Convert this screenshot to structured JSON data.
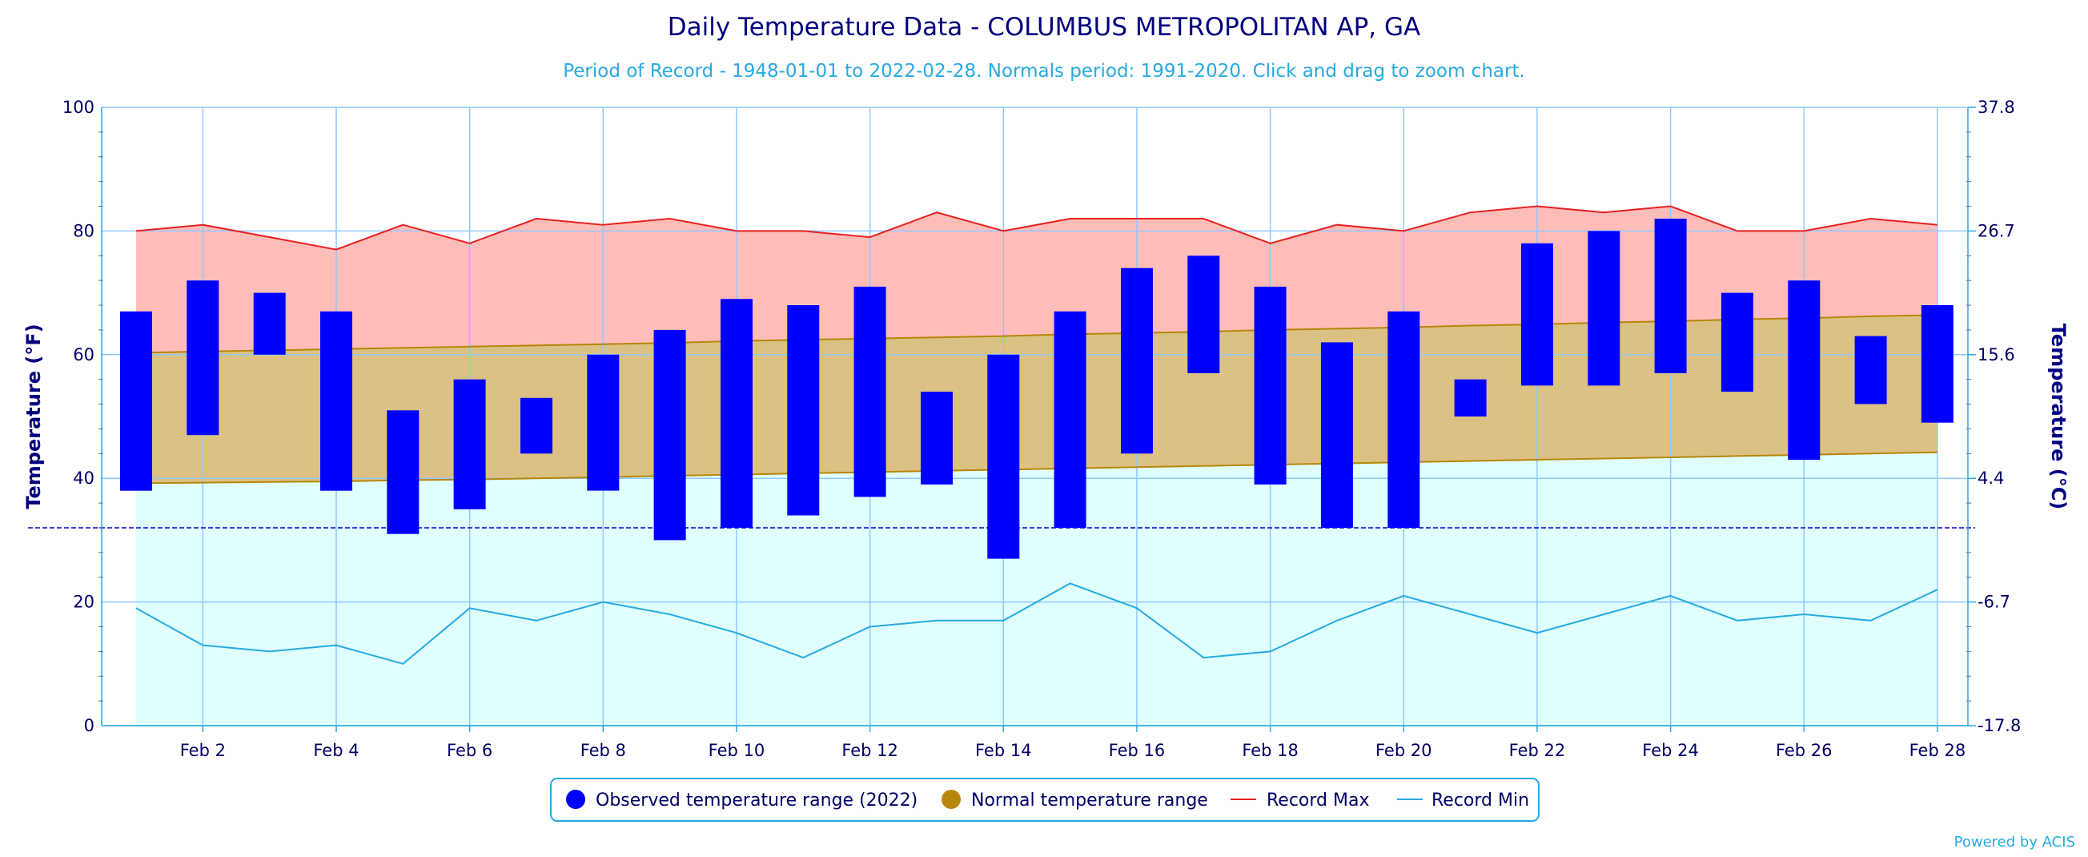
{
  "chart_data": {
    "type": "bar",
    "title": "Daily Temperature Data - COLUMBUS METROPOLITAN AP, GA",
    "subtitle": "Period of Record - 1948-01-01 to 2022-02-28. Normals period: 1991-2020. Click and drag to zoom chart.",
    "ylabel_left": "Temperature (°F)",
    "ylabel_right": "Temperature (°C)",
    "ylim": [
      0,
      100
    ],
    "y_ticks_left": [
      "0",
      "20",
      "40",
      "60",
      "80",
      "100"
    ],
    "y_ticks_right": [
      "-17.8",
      "-6.7",
      "4.4",
      "15.6",
      "26.7",
      "37.8"
    ],
    "x_tick_labels": [
      "Feb 2",
      "Feb 4",
      "Feb 6",
      "Feb 8",
      "Feb 10",
      "Feb 12",
      "Feb 14",
      "Feb 16",
      "Feb 18",
      "Feb 20",
      "Feb 22",
      "Feb 24",
      "Feb 26",
      "Feb 28"
    ],
    "days": [
      1,
      2,
      3,
      4,
      5,
      6,
      7,
      8,
      9,
      10,
      11,
      12,
      13,
      14,
      15,
      16,
      17,
      18,
      19,
      20,
      21,
      22,
      23,
      24,
      25,
      26,
      27,
      28
    ],
    "freezing_line": 32,
    "observed": {
      "name": "Observed temperature range (2022)",
      "color": "#0000ff",
      "low": [
        38,
        47,
        60,
        38,
        31,
        35,
        44,
        38,
        30,
        32,
        34,
        37,
        39,
        27,
        32,
        44,
        57,
        39,
        32,
        32,
        50,
        55,
        55,
        57,
        54,
        43,
        52,
        49
      ],
      "high": [
        67,
        72,
        70,
        67,
        51,
        56,
        53,
        60,
        64,
        69,
        68,
        71,
        54,
        60,
        67,
        74,
        76,
        71,
        62,
        67,
        56,
        78,
        80,
        82,
        70,
        72,
        63,
        68
      ]
    },
    "normal": {
      "name": "Normal temperature range",
      "color": "#b8860b",
      "fill": "#dbc183",
      "low": [
        39.2,
        39.3,
        39.4,
        39.5,
        39.7,
        39.8,
        40.0,
        40.2,
        40.4,
        40.6,
        40.8,
        41.0,
        41.2,
        41.4,
        41.6,
        41.8,
        42.0,
        42.2,
        42.4,
        42.6,
        42.8,
        43.0,
        43.2,
        43.4,
        43.6,
        43.8,
        44.0,
        44.2
      ],
      "high": [
        60.3,
        60.5,
        60.7,
        60.9,
        61.1,
        61.3,
        61.5,
        61.7,
        61.9,
        62.2,
        62.4,
        62.6,
        62.8,
        63.0,
        63.3,
        63.5,
        63.7,
        64.0,
        64.2,
        64.4,
        64.7,
        64.9,
        65.2,
        65.4,
        65.7,
        65.9,
        66.2,
        66.4
      ]
    },
    "record_max": {
      "name": "Record Max",
      "color": "#e8201e",
      "fill": "#ffbdb9",
      "values": [
        80,
        81,
        79,
        77,
        81,
        78,
        82,
        81,
        82,
        80,
        80,
        79,
        83,
        80,
        82,
        82,
        82,
        78,
        81,
        80,
        83,
        84,
        83,
        84,
        80,
        80,
        82,
        81
      ]
    },
    "record_min": {
      "name": "Record Min",
      "color": "#27aae1",
      "fill": "#e0ffff",
      "values": [
        19,
        13,
        12,
        13,
        10,
        19,
        17,
        20,
        18,
        15,
        11,
        16,
        17,
        17,
        23,
        19,
        11,
        12,
        17,
        21,
        18,
        15,
        18,
        21,
        17,
        18,
        17,
        22
      ]
    },
    "credit": "Powered by ACIS"
  }
}
